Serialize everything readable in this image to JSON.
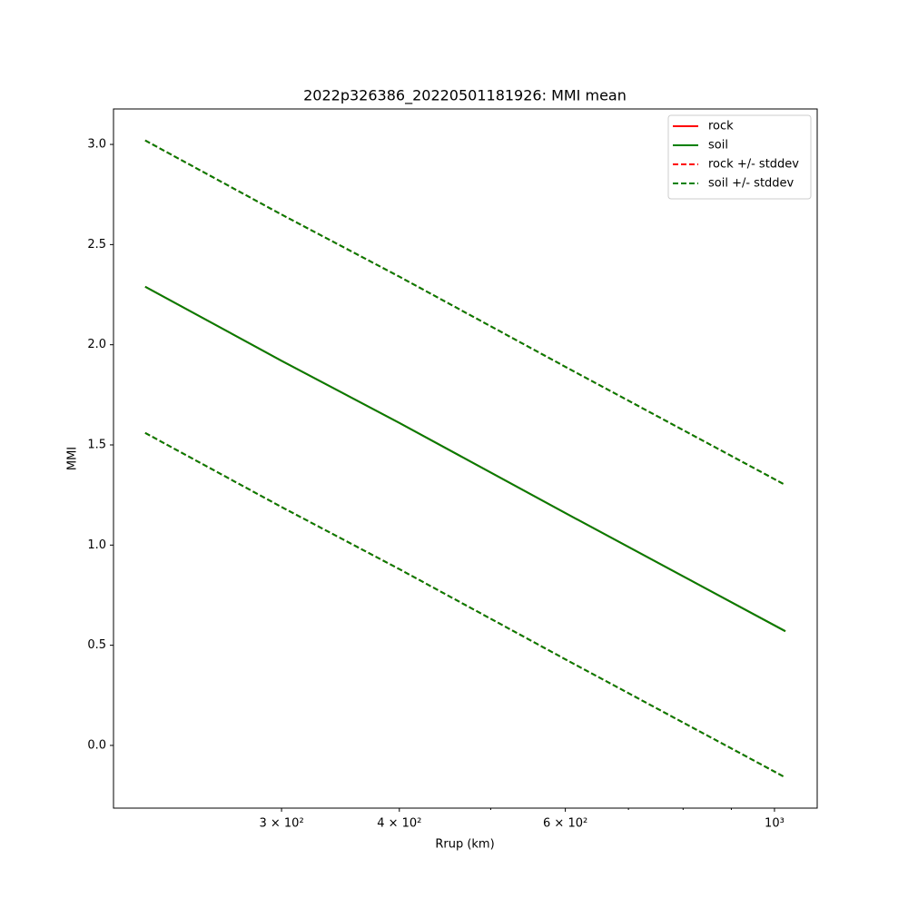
{
  "chart_data": {
    "type": "line",
    "title": "2022p326386_20220501181926: MMI mean",
    "xlabel": "Rrup (km)",
    "ylabel": "MMI",
    "x": [
      215,
      300,
      400,
      600,
      1027
    ],
    "xscale": "log",
    "xlim": [
      199,
      1110
    ],
    "ylim": [
      -0.313,
      3.177
    ],
    "xticks": [
      {
        "value": 300,
        "label": "3 × 10²"
      },
      {
        "value": 400,
        "label": "4 × 10²"
      },
      {
        "value": 600,
        "label": "6 × 10²"
      },
      {
        "value": 1000,
        "label": "10³"
      }
    ],
    "xminorticks": [
      500,
      700,
      800,
      900
    ],
    "yticks": [
      {
        "value": 0,
        "label": "0.0"
      },
      {
        "value": 0.5,
        "label": "0.5"
      },
      {
        "value": 1,
        "label": "1.0"
      },
      {
        "value": 1.5,
        "label": "1.5"
      },
      {
        "value": 2,
        "label": "2.0"
      },
      {
        "value": 2.5,
        "label": "2.5"
      },
      {
        "value": 3,
        "label": "3.0"
      }
    ],
    "legend": "upper right",
    "series": [
      {
        "name": "rock",
        "color": "#ff0000",
        "style": "solid",
        "values": [
          2.29,
          1.92,
          1.61,
          1.16,
          0.57
        ]
      },
      {
        "name": "soil",
        "color": "#008000",
        "style": "solid",
        "values": [
          2.29,
          1.92,
          1.61,
          1.16,
          0.57
        ]
      },
      {
        "name": "rock +/- stddev",
        "color": "#ff0000",
        "style": "dashed",
        "upper": [
          3.02,
          2.65,
          2.34,
          1.89,
          1.3
        ],
        "lower": [
          1.56,
          1.19,
          0.88,
          0.43,
          -0.16
        ]
      },
      {
        "name": "soil +/- stddev",
        "color": "#008000",
        "style": "dashed",
        "upper": [
          3.02,
          2.65,
          2.34,
          1.89,
          1.3
        ],
        "lower": [
          1.56,
          1.19,
          0.88,
          0.43,
          -0.16
        ]
      }
    ]
  }
}
